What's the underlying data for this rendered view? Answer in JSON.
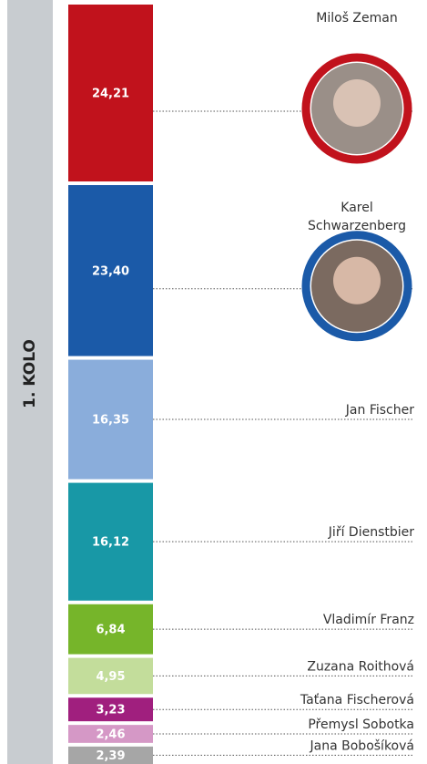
{
  "chart_data": {
    "type": "stacked-column",
    "title": "1. KOLO",
    "categories": [
      "Miloš Zeman",
      "Karel Schwarzenberg",
      "Jan Fischer",
      "Jiří Dienstbier",
      "Vladimír Franz",
      "Zuzana Roithová",
      "Taťana Fischerová",
      "Přemysl Sobotka",
      "Jana Bobošíková"
    ],
    "values": [
      24.21,
      23.4,
      16.35,
      16.12,
      6.84,
      4.95,
      3.23,
      2.46,
      2.39
    ],
    "value_labels": [
      "24,21",
      "23,40",
      "16,35",
      "16,12",
      "6,84",
      "4,95",
      "3,23",
      "2,46",
      "2,39"
    ],
    "colors": [
      "#c1121c",
      "#1b5aa8",
      "#8aaddb",
      "#1898a6",
      "#76b52a",
      "#c3dd9b",
      "#a01f7e",
      "#d598c6",
      "#a6a6a6"
    ]
  }
}
